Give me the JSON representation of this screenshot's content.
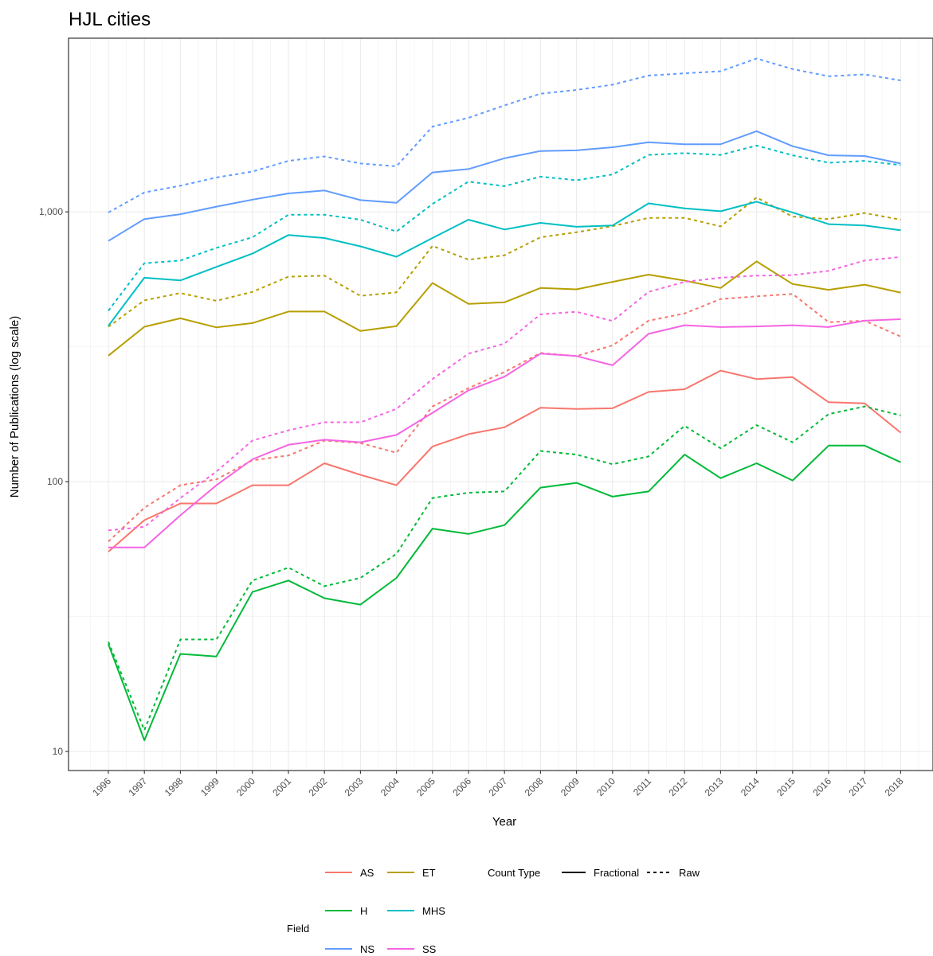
{
  "chart_data": {
    "type": "line",
    "title": "HJL cities",
    "xlabel": "Year",
    "ylabel": "Number of Publications (log scale)",
    "y_scale": "log",
    "ylim": [
      8.5,
      4400
    ],
    "grid": true,
    "legend_position": "bottom",
    "x": [
      "1996",
      "1997",
      "1998",
      "1999",
      "2000",
      "2001",
      "2002",
      "2003",
      "2004",
      "2005",
      "2006",
      "2007",
      "2008",
      "2009",
      "2010",
      "2011",
      "2012",
      "2013",
      "2014",
      "2015",
      "2016",
      "2017",
      "2018"
    ],
    "y_ticks": [
      10,
      100,
      1000
    ],
    "y_tick_labels": [
      "10",
      "100",
      "1,000"
    ],
    "series": [
      {
        "field": "AS",
        "count_type": "Fractional",
        "color": "#F8766D",
        "values": [
          55,
          72,
          83,
          83,
          97,
          97,
          117,
          106,
          97,
          135,
          150,
          159,
          188,
          186,
          187,
          215,
          220,
          258,
          240,
          244,
          197,
          195,
          152
        ]
      },
      {
        "field": "AS",
        "count_type": "Raw",
        "color": "#F8766D",
        "values": [
          60,
          80,
          97,
          102,
          120,
          125,
          142,
          139,
          128,
          190,
          222,
          255,
          300,
          292,
          320,
          395,
          420,
          475,
          486,
          496,
          390,
          395,
          345
        ]
      },
      {
        "field": "ET",
        "count_type": "Fractional",
        "color": "#B79F00",
        "values": [
          293,
          375,
          403,
          373,
          387,
          427,
          427,
          362,
          377,
          545,
          456,
          462,
          522,
          516,
          550,
          585,
          556,
          522,
          655,
          540,
          514,
          537,
          502
        ]
      },
      {
        "field": "ET",
        "count_type": "Raw",
        "color": "#B79F00",
        "values": [
          375,
          470,
          500,
          468,
          505,
          575,
          580,
          488,
          503,
          748,
          665,
          690,
          805,
          840,
          885,
          950,
          950,
          883,
          1130,
          960,
          940,
          990,
          935
        ]
      },
      {
        "field": "H",
        "count_type": "Fractional",
        "color": "#00BA38",
        "values": [
          25,
          11,
          23,
          22.5,
          39,
          43,
          37,
          35,
          44,
          67,
          64,
          69,
          95,
          99,
          88,
          92,
          126,
          103,
          117,
          101,
          136,
          136,
          118
        ]
      },
      {
        "field": "H",
        "count_type": "Raw",
        "color": "#00BA38",
        "values": [
          25.5,
          12,
          26,
          26,
          43,
          48,
          41,
          44,
          54,
          87,
          91,
          92,
          130,
          126,
          116,
          124,
          161,
          133,
          162,
          140,
          178,
          190,
          176
        ]
      },
      {
        "field": "MHS",
        "count_type": "Fractional",
        "color": "#00BFC4",
        "values": [
          378,
          570,
          557,
          625,
          700,
          820,
          800,
          745,
          682,
          800,
          935,
          860,
          910,
          880,
          890,
          1075,
          1030,
          1005,
          1090,
          995,
          900,
          890,
          855
        ]
      },
      {
        "field": "MHS",
        "count_type": "Raw",
        "color": "#00BFC4",
        "values": [
          430,
          645,
          660,
          735,
          805,
          975,
          975,
          935,
          845,
          1070,
          1295,
          1245,
          1350,
          1310,
          1375,
          1625,
          1650,
          1625,
          1760,
          1620,
          1520,
          1545,
          1490
        ]
      },
      {
        "field": "NS",
        "count_type": "Fractional",
        "color": "#619CFF",
        "values": [
          780,
          940,
          980,
          1045,
          1110,
          1170,
          1200,
          1105,
          1080,
          1400,
          1440,
          1580,
          1680,
          1690,
          1735,
          1810,
          1780,
          1780,
          1990,
          1750,
          1620,
          1610,
          1510
        ]
      },
      {
        "field": "NS",
        "count_type": "Raw",
        "color": "#619CFF",
        "values": [
          995,
          1180,
          1250,
          1340,
          1410,
          1545,
          1605,
          1510,
          1475,
          2070,
          2230,
          2480,
          2740,
          2830,
          2960,
          3200,
          3260,
          3320,
          3700,
          3380,
          3180,
          3230,
          3070
        ]
      },
      {
        "field": "SS",
        "count_type": "Fractional",
        "color": "#F564E3",
        "values": [
          57,
          57,
          75,
          97,
          121,
          137,
          143,
          140,
          149,
          180,
          218,
          245,
          298,
          292,
          270,
          353,
          380,
          374,
          376,
          380,
          374,
          395,
          400
        ]
      },
      {
        "field": "SS",
        "count_type": "Raw",
        "color": "#F564E3",
        "values": [
          66,
          68,
          87,
          109,
          142,
          155,
          166,
          166,
          186,
          240,
          298,
          325,
          417,
          426,
          394,
          505,
          550,
          570,
          580,
          583,
          604,
          660,
          680
        ]
      }
    ],
    "legend": {
      "field_title": "Field",
      "fields": [
        {
          "label": "AS",
          "color": "#F8766D"
        },
        {
          "label": "ET",
          "color": "#B79F00"
        },
        {
          "label": "H",
          "color": "#00BA38"
        },
        {
          "label": "MHS",
          "color": "#00BFC4"
        },
        {
          "label": "NS",
          "color": "#619CFF"
        },
        {
          "label": "SS",
          "color": "#F564E3"
        }
      ],
      "count_type_title": "Count Type",
      "count_types": [
        {
          "label": "Fractional",
          "linetype": "solid"
        },
        {
          "label": "Raw",
          "linetype": "dashed"
        }
      ]
    }
  }
}
